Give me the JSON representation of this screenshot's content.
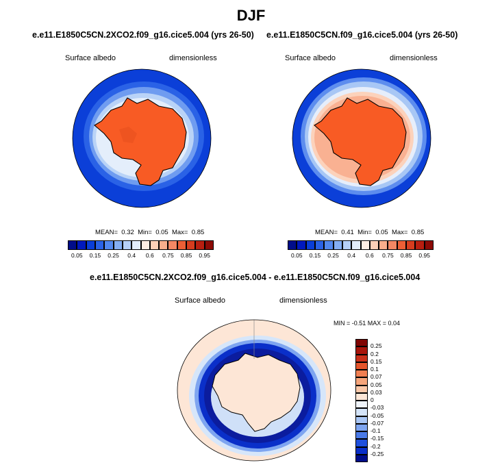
{
  "figure": {
    "title": "DJF"
  },
  "panels": [
    {
      "id": "case",
      "title": "e.e11.E1850C5CN.2XCO2.f09_g16.cice5.004 (yrs 26-50)",
      "variable": "Surface albedo",
      "units": "dimensionless",
      "stats": {
        "mean_label": "MEAN=",
        "mean": "0.32",
        "min_label": "Min=",
        "min": "0.05",
        "max_label": "Max=",
        "max": "0.85"
      }
    },
    {
      "id": "control",
      "title": "e.e11.E1850C5CN.f09_g16.cice5.004 (yrs 26-50)",
      "variable": "Surface albedo",
      "units": "dimensionless",
      "stats": {
        "mean_label": "MEAN=",
        "mean": "0.41",
        "min_label": "Min=",
        "min": "0.05",
        "max_label": "Max=",
        "max": "0.85"
      }
    },
    {
      "id": "diff",
      "title": "e.e11.E1850C5CN.2XCO2.f09_g16.cice5.004 - e.e11.E1850C5CN.f09_g16.cice5.004",
      "variable": "Surface albedo",
      "units": "dimensionless",
      "minmax": "MIN =  -0.51 MAX =    0.04"
    }
  ],
  "chart_data": [
    {
      "type": "heatmap",
      "projection": "south-polar stereographic",
      "title": "e.e11.E1850C5CN.2XCO2.f09_g16.cice5.004 (yrs 26-50)",
      "variable": "Surface albedo",
      "units": "dimensionless",
      "mean": 0.32,
      "min": 0.05,
      "max": 0.85,
      "colorbar": {
        "levels": [
          0.05,
          0.15,
          0.25,
          0.4,
          0.6,
          0.75,
          0.85,
          0.95
        ],
        "tick_labels": [
          "0.05",
          "0.15",
          "0.25",
          "0.4",
          "0.6",
          "0.75",
          "0.85",
          "0.95"
        ],
        "colors": [
          "#000d8a",
          "#0019bd",
          "#0a3ed8",
          "#2a62e6",
          "#5288ef",
          "#84aef3",
          "#b6d0f7",
          "#e2edfb",
          "#fdeee4",
          "#fcd0b8",
          "#f8ae8c",
          "#f38864",
          "#ec5f36",
          "#d63d1f",
          "#b81f10",
          "#8c0a05"
        ]
      }
    },
    {
      "type": "heatmap",
      "projection": "south-polar stereographic",
      "title": "e.e11.E1850C5CN.f09_g16.cice5.004 (yrs 26-50)",
      "variable": "Surface albedo",
      "units": "dimensionless",
      "mean": 0.41,
      "min": 0.05,
      "max": 0.85,
      "colorbar": {
        "levels": [
          0.05,
          0.15,
          0.25,
          0.4,
          0.6,
          0.75,
          0.85,
          0.95
        ],
        "tick_labels": [
          "0.05",
          "0.15",
          "0.25",
          "0.4",
          "0.6",
          "0.75",
          "0.85",
          "0.95"
        ],
        "colors": [
          "#000d8a",
          "#0019bd",
          "#0a3ed8",
          "#2a62e6",
          "#5288ef",
          "#84aef3",
          "#b6d0f7",
          "#e2edfb",
          "#fdeee4",
          "#fcd0b8",
          "#f8ae8c",
          "#f38864",
          "#ec5f36",
          "#d63d1f",
          "#b81f10",
          "#8c0a05"
        ]
      }
    },
    {
      "type": "heatmap",
      "projection": "orthographic (south pole view)",
      "title": "e.e11.E1850C5CN.2XCO2.f09_g16.cice5.004 - e.e11.E1850C5CN.f09_g16.cice5.004",
      "variable": "Surface albedo",
      "units": "dimensionless",
      "min": -0.51,
      "max": 0.04,
      "colorbar": {
        "orientation": "vertical",
        "levels": [
          -0.25,
          -0.2,
          -0.15,
          -0.1,
          -0.07,
          -0.05,
          -0.03,
          0,
          0.03,
          0.05,
          0.07,
          0.1,
          0.15,
          0.2,
          0.25
        ],
        "tick_labels": [
          "-0.25",
          "-0.2",
          "-0.15",
          "-0.1",
          "-0.07",
          "-0.05",
          "-0.03",
          "0",
          "0.03",
          "0.05",
          "0.07",
          "0.1",
          "0.15",
          "0.2",
          "0.25"
        ],
        "colors": [
          "#000d8a",
          "#0a2fc9",
          "#1f50de",
          "#4a7ae8",
          "#7ea5f0",
          "#a9c6f5",
          "#d4e4f9",
          "#f0f4fb",
          "#fde6d6",
          "#fbc8a9",
          "#f6a57b",
          "#f07f52",
          "#e4552c",
          "#c9301a",
          "#a8150b",
          "#800503"
        ]
      }
    }
  ],
  "colors": {
    "ocean_blue": "#0a3cd6",
    "ice_land_orange": "#fa5a22",
    "near_zero": "#fde8d8"
  }
}
